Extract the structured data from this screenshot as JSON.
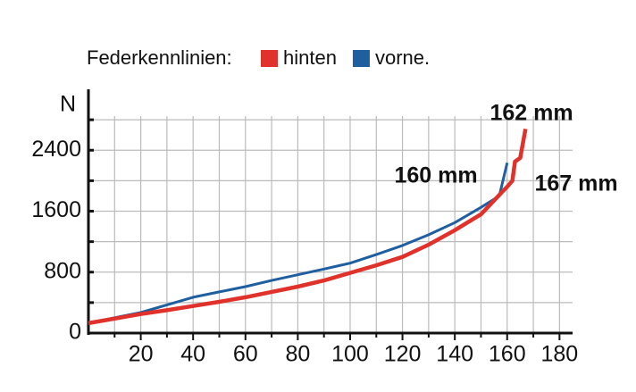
{
  "chart_data": {
    "type": "line",
    "legend_title": "Federkennlinien:",
    "y_label": "N",
    "xlim": [
      0,
      185
    ],
    "ylim": [
      0,
      3200
    ],
    "xticks": [
      20,
      40,
      60,
      80,
      100,
      120,
      140,
      160,
      180
    ],
    "xminor_ticks": [
      10,
      30,
      50,
      70,
      90,
      110,
      130,
      150,
      170
    ],
    "yticks": [
      0,
      800,
      1600,
      2400
    ],
    "yminor_ticks": [
      400,
      1200,
      2000,
      2800
    ],
    "grid": true,
    "series": [
      {
        "name": "hinten",
        "color": "#e0312b",
        "x": [
          0,
          10,
          20,
          30,
          40,
          50,
          60,
          70,
          80,
          90,
          100,
          110,
          120,
          130,
          140,
          150,
          155,
          158,
          160,
          162,
          163,
          165,
          167
        ],
        "values": [
          130,
          190,
          250,
          300,
          355,
          410,
          470,
          540,
          610,
          690,
          790,
          890,
          1000,
          1160,
          1350,
          1560,
          1740,
          1850,
          1920,
          2000,
          2250,
          2300,
          2680
        ]
      },
      {
        "name": "vorne.",
        "color": "#1f5fa0",
        "x": [
          0,
          10,
          20,
          30,
          40,
          50,
          60,
          70,
          80,
          90,
          100,
          110,
          120,
          130,
          140,
          150,
          157,
          160
        ],
        "values": [
          130,
          200,
          270,
          370,
          470,
          540,
          610,
          690,
          765,
          840,
          918,
          1030,
          1150,
          1290,
          1450,
          1650,
          1800,
          2235
        ]
      }
    ],
    "annotations": [
      "162 mm",
      "160 mm",
      "167 mm"
    ]
  }
}
